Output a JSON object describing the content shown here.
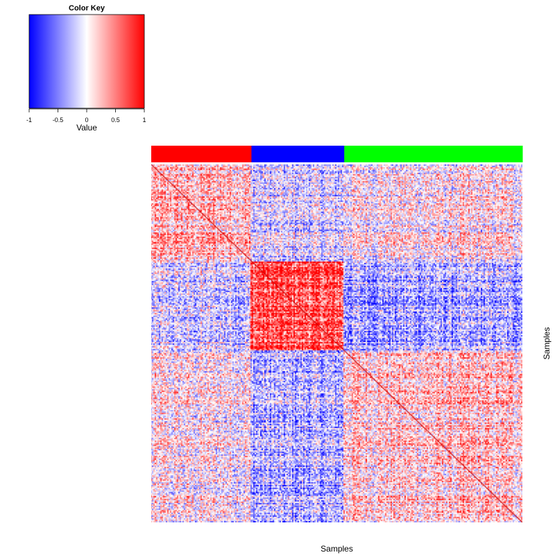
{
  "color_key": {
    "title": "Color Key",
    "label": "Value",
    "ticks": [
      "-1",
      "-0.5",
      "0",
      "0.5",
      "1"
    ],
    "colors": {
      "low": "#0000ff",
      "mid": "#ffffff",
      "high": "#ff0000"
    }
  },
  "chart_data": {
    "type": "heatmap",
    "xlabel": "Samples",
    "ylabel": "Samples",
    "value_range": [
      -1,
      1
    ],
    "diagonal_value": 1,
    "diagonal_color": "#cc0000",
    "groups": [
      {
        "fraction": 0.27,
        "color": "#ff0000"
      },
      {
        "fraction": 0.25,
        "color": "#0000ff"
      },
      {
        "fraction": 0.48,
        "color": "#00ff00"
      }
    ],
    "block_mean_correlation": [
      [
        0.25,
        -0.15,
        0.05
      ],
      [
        -0.15,
        0.7,
        -0.3
      ],
      [
        0.05,
        -0.3,
        0.2
      ]
    ]
  }
}
